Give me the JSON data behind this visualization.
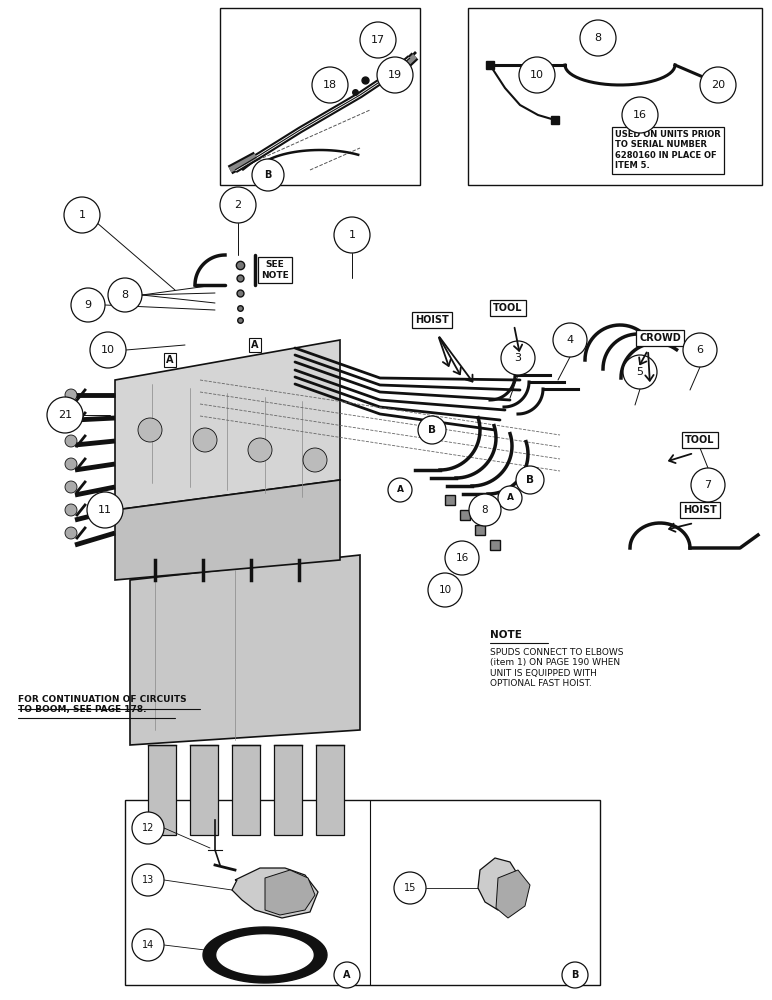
{
  "figure_width": 7.72,
  "figure_height": 10.0,
  "dpi": 100,
  "bg_color": "#ffffff",
  "lc": "#111111",
  "note_text": "NOTE\nSPUDS CONNECT TO ELBOWS\n(item 1) ON PAGE 190 WHEN\nUNIT IS EQUIPPED WITH\nOPTIONAL FAST HOIST.",
  "continuation_text": "FOR CONTINUATION OF CIRCUITS\nTO BOOM, SEE PAGE 178.",
  "used_on_text": "USED ON UNITS PRIOR\nTO SERIAL NUMBER\n6280160 IN PLACE OF\nITEM 5."
}
